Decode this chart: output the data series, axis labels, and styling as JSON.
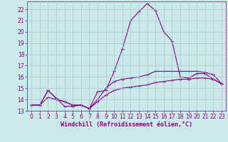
{
  "title": "",
  "xlabel": "Windchill (Refroidissement éolien,°C)",
  "ylabel": "",
  "background_color": "#cbe9e9",
  "grid_color": "#a0cccc",
  "line_color": "#880088",
  "xlim": [
    -0.5,
    23.5
  ],
  "ylim": [
    13,
    22.7
  ],
  "xticks": [
    0,
    1,
    2,
    3,
    4,
    5,
    6,
    7,
    8,
    9,
    10,
    11,
    12,
    13,
    14,
    15,
    16,
    17,
    18,
    19,
    20,
    21,
    22,
    23
  ],
  "yticks": [
    13,
    14,
    15,
    16,
    17,
    18,
    19,
    20,
    21,
    22
  ],
  "curve1_x": [
    0,
    1,
    2,
    3,
    4,
    5,
    6,
    7,
    8,
    9,
    10,
    11,
    12,
    13,
    14,
    15,
    16,
    17,
    18,
    19,
    20,
    21,
    22,
    23
  ],
  "curve1_y": [
    13.5,
    13.5,
    14.8,
    14.1,
    13.4,
    13.4,
    13.5,
    13.2,
    14.7,
    14.8,
    16.5,
    18.5,
    21.0,
    21.8,
    22.5,
    21.9,
    20.0,
    19.2,
    16.0,
    15.9,
    16.3,
    16.3,
    15.8,
    15.4
  ],
  "curve2_x": [
    0,
    1,
    2,
    3,
    4,
    5,
    6,
    7,
    8,
    9,
    10,
    11,
    12,
    13,
    14,
    15,
    16,
    17,
    18,
    19,
    20,
    21,
    22,
    23
  ],
  "curve2_y": [
    13.5,
    13.5,
    14.8,
    14.1,
    13.8,
    13.5,
    13.5,
    13.2,
    14.0,
    15.0,
    15.6,
    15.8,
    15.9,
    16.0,
    16.2,
    16.5,
    16.5,
    16.5,
    16.5,
    16.5,
    16.5,
    16.4,
    16.2,
    15.4
  ],
  "curve3_x": [
    0,
    1,
    2,
    3,
    4,
    5,
    6,
    7,
    8,
    9,
    10,
    11,
    12,
    13,
    14,
    15,
    16,
    17,
    18,
    19,
    20,
    21,
    22,
    23
  ],
  "curve3_y": [
    13.5,
    13.5,
    14.2,
    14.0,
    13.8,
    13.5,
    13.5,
    13.2,
    13.8,
    14.4,
    14.8,
    15.0,
    15.1,
    15.2,
    15.3,
    15.5,
    15.6,
    15.7,
    15.8,
    15.8,
    15.9,
    15.9,
    15.8,
    15.4
  ],
  "tick_fontsize": 5.5,
  "xlabel_fontsize": 6.0,
  "marker": "+",
  "markersize": 2.5,
  "linewidth": 0.8
}
